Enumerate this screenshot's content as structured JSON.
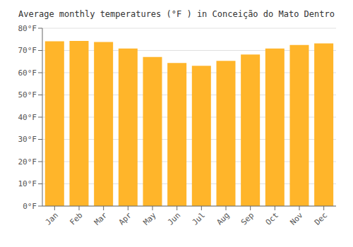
{
  "chart_data": {
    "type": "bar",
    "title": "Average monthly temperatures (°F ) in Conceição do Mato Dentro",
    "categories": [
      "Jan",
      "Feb",
      "Mar",
      "Apr",
      "May",
      "Jun",
      "Jul",
      "Aug",
      "Sep",
      "Oct",
      "Nov",
      "Dec"
    ],
    "values": [
      74.1,
      74.3,
      73.8,
      70.9,
      67.1,
      64.4,
      63.1,
      65.3,
      68.2,
      70.9,
      72.5,
      73.2
    ],
    "color": "#FFB52A",
    "ylim": [
      0,
      80
    ],
    "yticks": [
      {
        "value": 0,
        "label": "0°F"
      },
      {
        "value": 10,
        "label": "10°F"
      },
      {
        "value": 20,
        "label": "20°F"
      },
      {
        "value": 30,
        "label": "30°F"
      },
      {
        "value": 40,
        "label": "40°F"
      },
      {
        "value": 50,
        "label": "50°F"
      },
      {
        "value": 60,
        "label": "60°F"
      },
      {
        "value": 70,
        "label": "70°F"
      },
      {
        "value": 80,
        "label": "80°F"
      }
    ],
    "grid": true
  }
}
